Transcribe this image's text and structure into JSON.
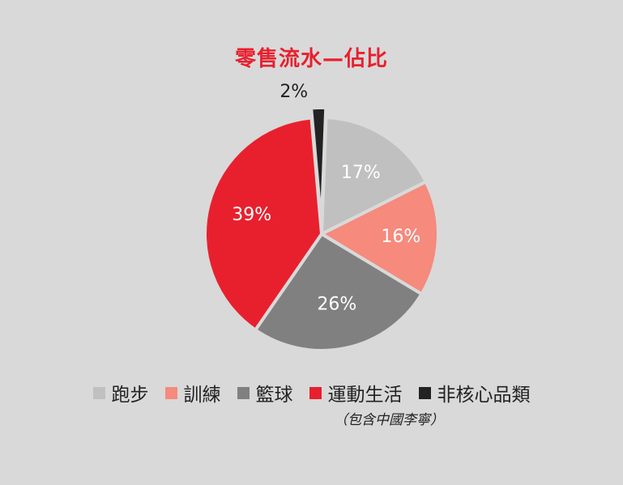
{
  "chart_data": {
    "type": "pie",
    "title": "零售流水—佔比",
    "categories": [
      "跑步",
      "訓練",
      "籃球",
      "運動生活",
      "非核心品類"
    ],
    "values": [
      17,
      16,
      26,
      39,
      2
    ],
    "labels": [
      "17%",
      "16%",
      "26%",
      "39%",
      "2%"
    ],
    "colors": [
      "#c0c0c0",
      "#f58a7d",
      "#808080",
      "#e8202e",
      "#222222"
    ],
    "legend_position": "bottom",
    "legend_note": "（包含中國李寧）"
  }
}
